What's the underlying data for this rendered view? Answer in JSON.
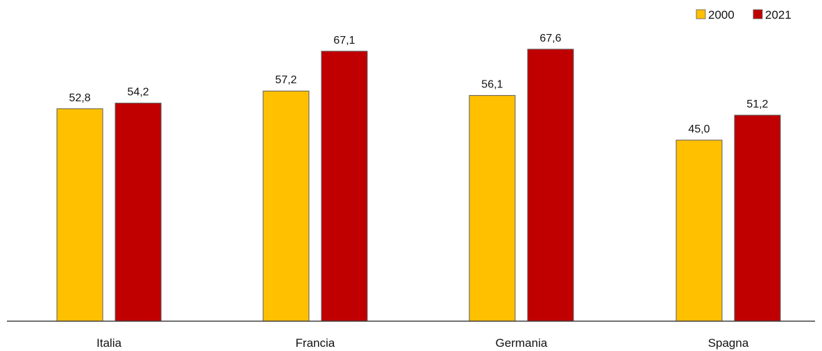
{
  "chart_data": {
    "type": "bar",
    "categories": [
      "Italia",
      "Francia",
      "Germania",
      "Spagna"
    ],
    "series": [
      {
        "name": "2000",
        "values": [
          52.8,
          57.2,
          56.1,
          45.0
        ],
        "labels": [
          "52,8",
          "57,2",
          "56,1",
          "45,0"
        ],
        "color": "#FFC000"
      },
      {
        "name": "2021",
        "values": [
          54.2,
          67.1,
          67.6,
          51.2
        ],
        "labels": [
          "54,2",
          "67,1",
          "67,6",
          "51,2"
        ],
        "color": "#C00000"
      }
    ],
    "ylim": [
      0,
      80
    ],
    "grid": false,
    "legend": "top-right"
  }
}
